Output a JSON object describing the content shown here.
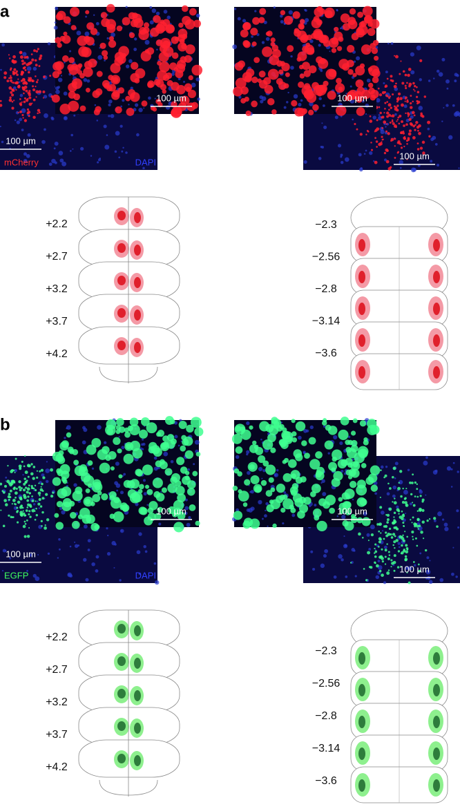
{
  "panels": [
    {
      "label": "a",
      "images": [
        {
          "scale_bar": "100 µm"
        },
        {
          "scale_bar": "100 µm"
        },
        {
          "scale_bar": "100 µm"
        },
        {
          "scale_bar": "100 µm"
        }
      ],
      "stains": [
        "mCherry",
        "DAPI"
      ],
      "anterior_levels": [
        "+2.2",
        "+2.7",
        "+3.2",
        "+3.7",
        "+4.2"
      ],
      "posterior_levels": [
        "−2.3",
        "−2.56",
        "−2.8",
        "−3.14",
        "−3.6"
      ]
    },
    {
      "label": "b",
      "images": [
        {
          "scale_bar": "100 µm"
        },
        {
          "scale_bar": "100 µm"
        },
        {
          "scale_bar": "100 µm"
        },
        {
          "scale_bar": "100 µm"
        }
      ],
      "stains": [
        "EGFP",
        "DAPI"
      ],
      "anterior_levels": [
        "+2.2",
        "+2.7",
        "+3.2",
        "+3.7",
        "+4.2"
      ],
      "posterior_levels": [
        "−2.3",
        "−2.56",
        "−2.8",
        "−3.14",
        "−3.6"
      ]
    }
  ]
}
